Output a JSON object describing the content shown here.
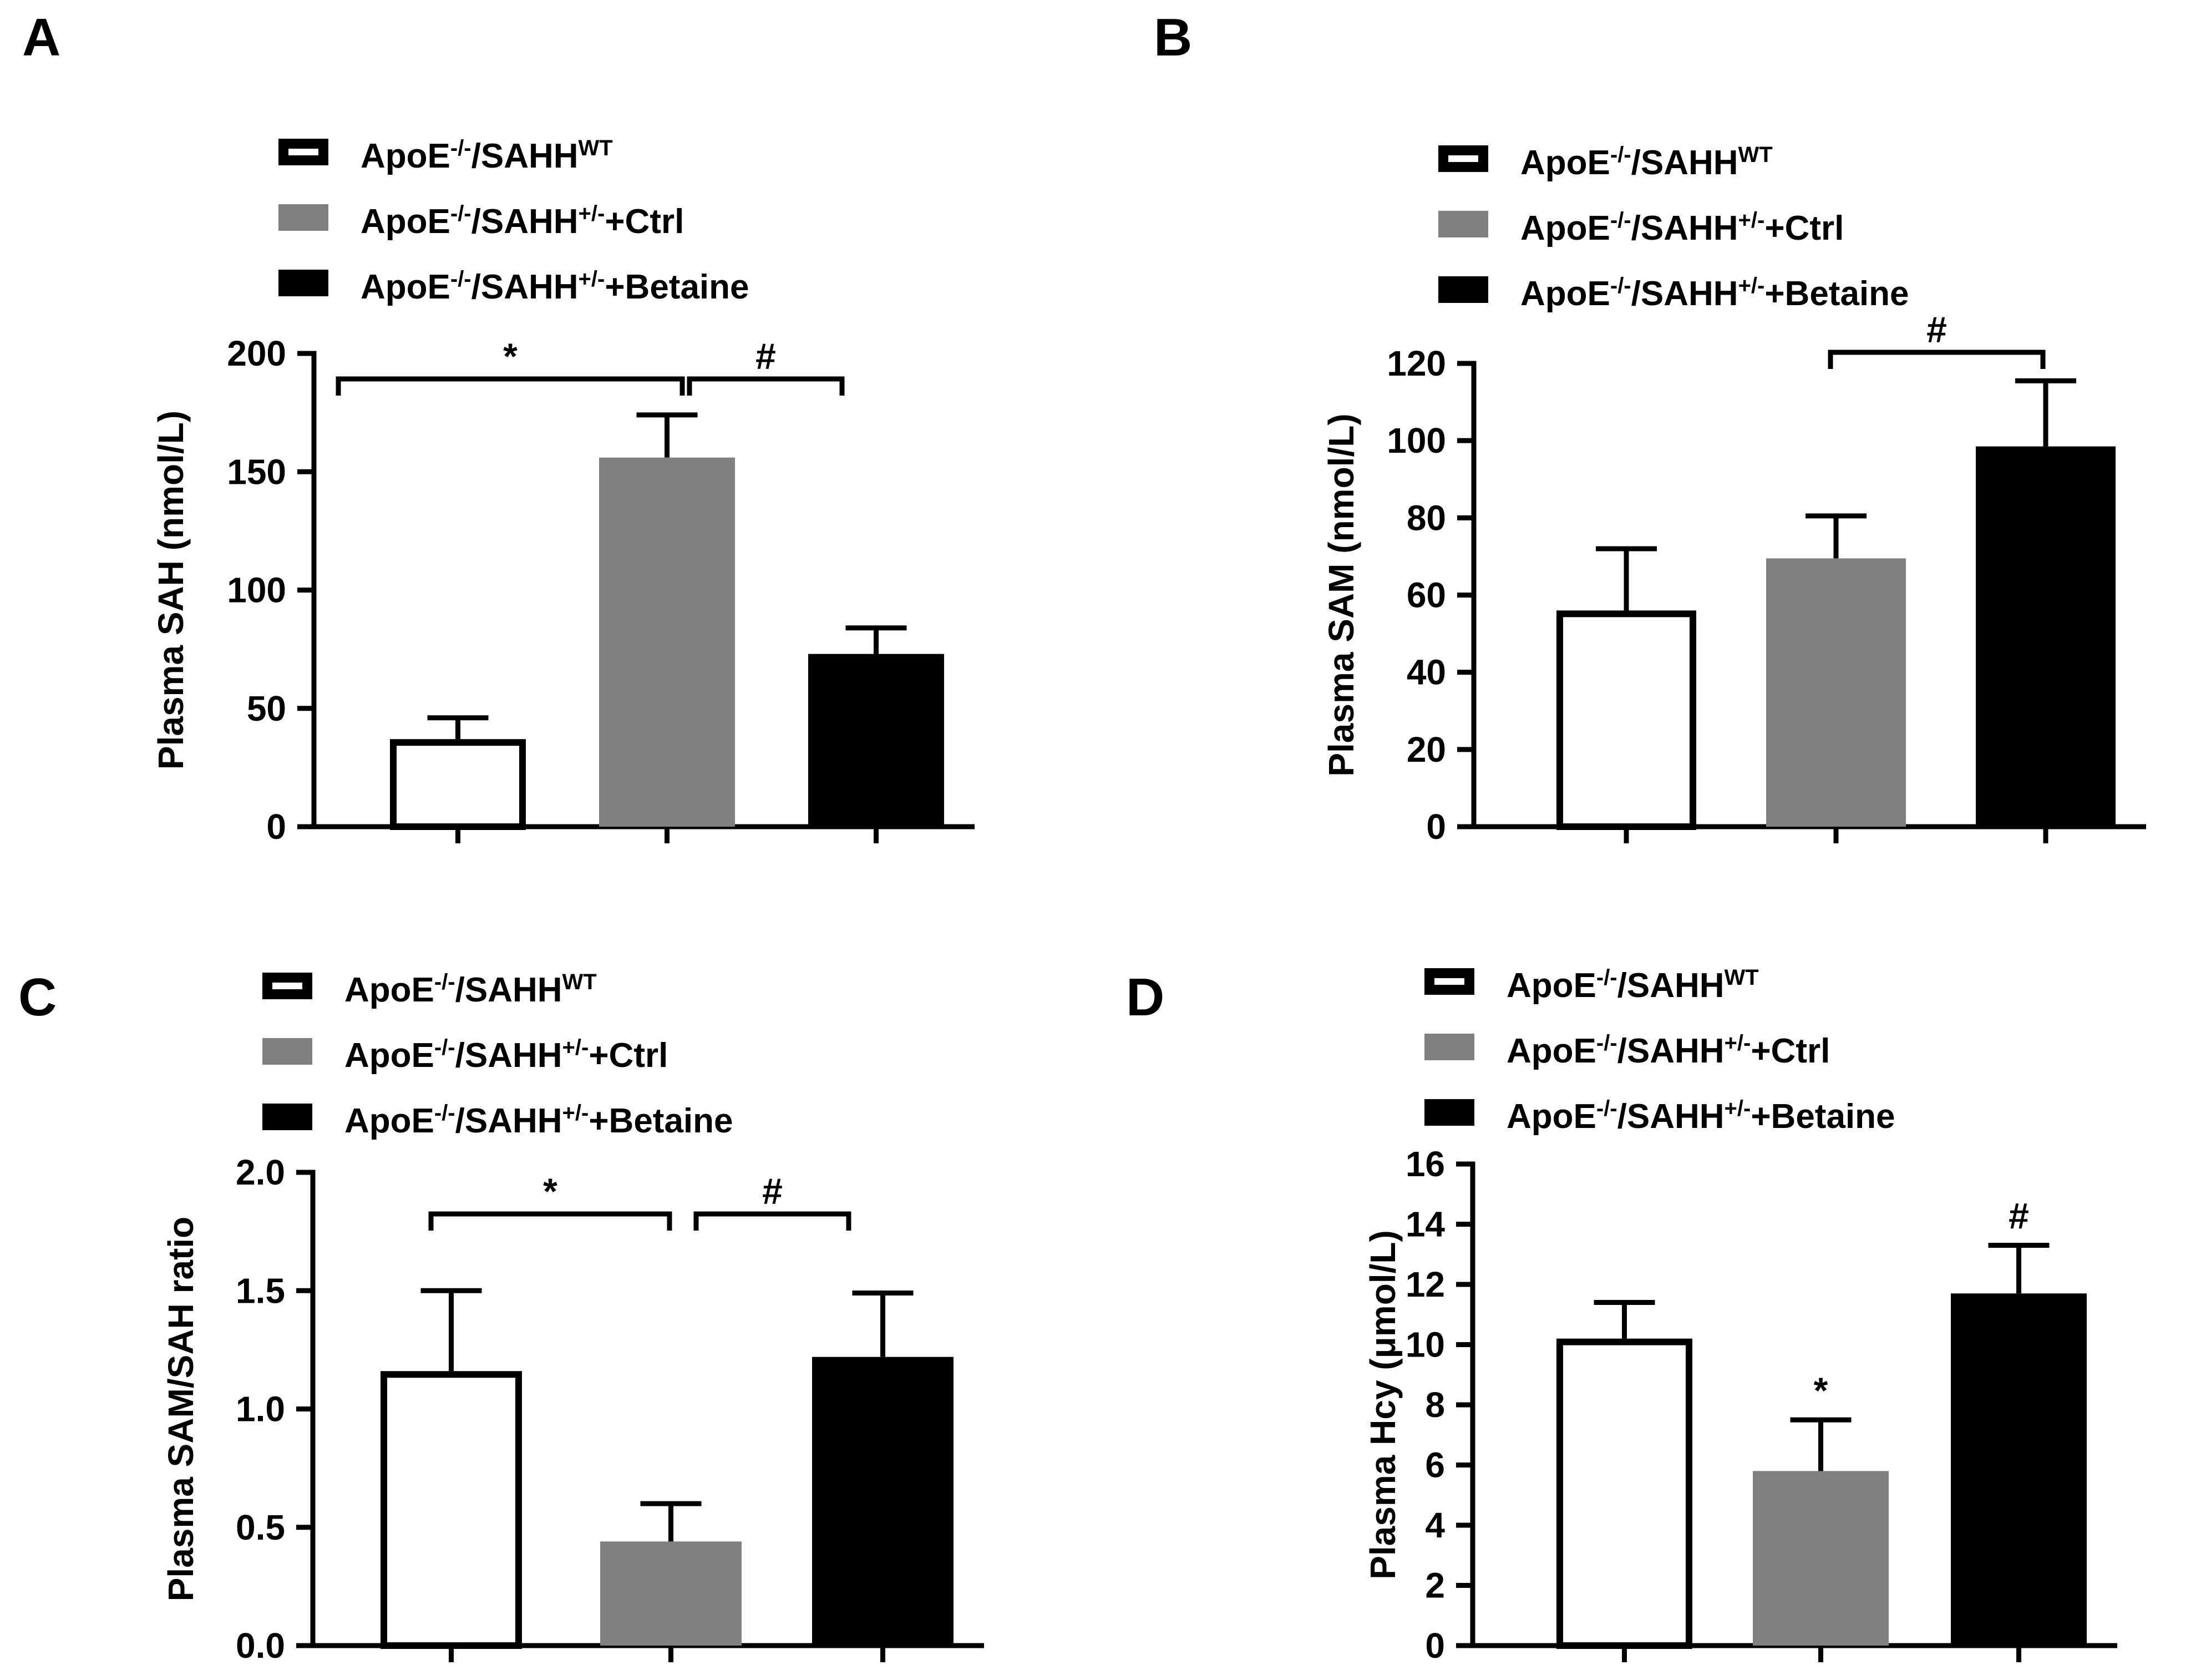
{
  "figure": {
    "panels": [
      {
        "letter": "A",
        "legend": [
          {
            "base": "ApoE",
            "sup1": "-/-",
            "mid": "/SAHH",
            "sup2": "WT",
            "tail": ""
          },
          {
            "base": "ApoE",
            "sup1": "-/-",
            "mid": "/SAHH",
            "sup2": "+/-",
            "tail": "+Ctrl"
          },
          {
            "base": "ApoE",
            "sup1": "-/-",
            "mid": "/SAHH",
            "sup2": "+/-",
            "tail": "+Betaine"
          }
        ]
      },
      {
        "letter": "B",
        "legend": [
          {
            "base": "ApoE",
            "sup1": "-/-",
            "mid": "/SAHH",
            "sup2": "WT",
            "tail": ""
          },
          {
            "base": "ApoE",
            "sup1": "-/-",
            "mid": "/SAHH",
            "sup2": "+/-",
            "tail": "+Ctrl"
          },
          {
            "base": "ApoE",
            "sup1": "-/-",
            "mid": "/SAHH",
            "sup2": "+/-",
            "tail": "+Betaine"
          }
        ]
      },
      {
        "letter": "C",
        "legend": [
          {
            "base": "ApoE",
            "sup1": "-/-",
            "mid": "/SAHH",
            "sup2": "WT",
            "tail": ""
          },
          {
            "base": "ApoE",
            "sup1": "-/-",
            "mid": "/SAHH",
            "sup2": "+/-",
            "tail": "+Ctrl"
          },
          {
            "base": "ApoE",
            "sup1": "-/-",
            "mid": "/SAHH",
            "sup2": "+/-",
            "tail": "+Betaine"
          }
        ]
      },
      {
        "letter": "D",
        "legend": [
          {
            "base": "ApoE",
            "sup1": "-/-",
            "mid": "/SAHH",
            "sup2": "WT",
            "tail": ""
          },
          {
            "base": "ApoE",
            "sup1": "-/-",
            "mid": "/SAHH",
            "sup2": "+/-",
            "tail": "+Ctrl"
          },
          {
            "base": "ApoE",
            "sup1": "-/-",
            "mid": "/SAHH",
            "sup2": "+/-",
            "tail": "+Betaine"
          }
        ]
      }
    ]
  },
  "colors": {
    "wt": "#ffffff",
    "ctrl": "#808080",
    "betaine": "#000000",
    "axis": "#000000"
  },
  "chart_data": [
    {
      "panel": "A",
      "type": "bar",
      "categories": [
        "ApoE-/-/SAHHWT",
        "ApoE-/-/SAHH+/-+Ctrl",
        "ApoE-/-/SAHH+/-+Betaine"
      ],
      "values": [
        37,
        156,
        73
      ],
      "errors": [
        9,
        18,
        11
      ],
      "ylabel": "Plasma SAH (nmol/L)",
      "ylim": [
        0,
        200
      ],
      "yticks": [
        0,
        50,
        100,
        150,
        200
      ],
      "ytick_labels": [
        "0",
        "50",
        "100",
        "150",
        "200"
      ],
      "significance": [
        {
          "label": "*",
          "from": 0,
          "to": 1,
          "level": 188
        },
        {
          "label": "#",
          "from": 1,
          "to": 2,
          "level": 188
        }
      ]
    },
    {
      "panel": "B",
      "type": "bar",
      "categories": [
        "ApoE-/-/SAHHWT",
        "ApoE-/-/SAHH+/-+Ctrl",
        "ApoE-/-/SAHH+/-+Betaine"
      ],
      "values": [
        56,
        69.5,
        98.5
      ],
      "errors": [
        16,
        11,
        17
      ],
      "ylabel": "Plasma SAM (nmol/L)",
      "ylim": [
        0,
        120
      ],
      "yticks": [
        0,
        20,
        40,
        60,
        80,
        100,
        120
      ],
      "ytick_labels": [
        "0",
        "20",
        "40",
        "60",
        "80",
        "100",
        "120"
      ],
      "significance": [
        {
          "label": "#",
          "from": 1,
          "to": 2,
          "level": 122
        }
      ]
    },
    {
      "panel": "C",
      "type": "bar",
      "categories": [
        "ApoE-/-/SAHHWT",
        "ApoE-/-/SAHH+/-+Ctrl",
        "ApoE-/-/SAHH+/-+Betaine"
      ],
      "values": [
        1.16,
        0.44,
        1.22
      ],
      "errors": [
        0.34,
        0.16,
        0.27
      ],
      "ylabel": "Plasma SAM/SAH ratio",
      "ylim": [
        0,
        2.0
      ],
      "yticks": [
        0,
        0.5,
        1.0,
        1.5,
        2.0
      ],
      "ytick_labels": [
        "0.0",
        "0.5",
        "1.0",
        "1.5",
        "2.0"
      ],
      "significance": [
        {
          "label": "*",
          "from": 0,
          "to": 1,
          "level": 1.8
        },
        {
          "label": "#",
          "from": 1,
          "to": 2,
          "level": 1.8
        }
      ]
    },
    {
      "panel": "D",
      "type": "bar",
      "categories": [
        "ApoE-/-/SAHHWT",
        "ApoE-/-/SAHH+/-+Ctrl",
        "ApoE-/-/SAHH+/-+Betaine"
      ],
      "values": [
        10.2,
        5.8,
        11.7
      ],
      "errors": [
        1.2,
        1.7,
        1.6
      ],
      "ylabel": "Plasma Hcy (μmol/L)",
      "ylim": [
        0,
        16
      ],
      "yticks": [
        0,
        2,
        4,
        6,
        8,
        10,
        12,
        14,
        16
      ],
      "ytick_labels": [
        "0",
        "2",
        "4",
        "6",
        "8",
        "10",
        "12",
        "14",
        "16"
      ],
      "annotations": [
        {
          "label": "*",
          "bar": 1
        },
        {
          "label": "#",
          "bar": 2
        }
      ]
    }
  ]
}
